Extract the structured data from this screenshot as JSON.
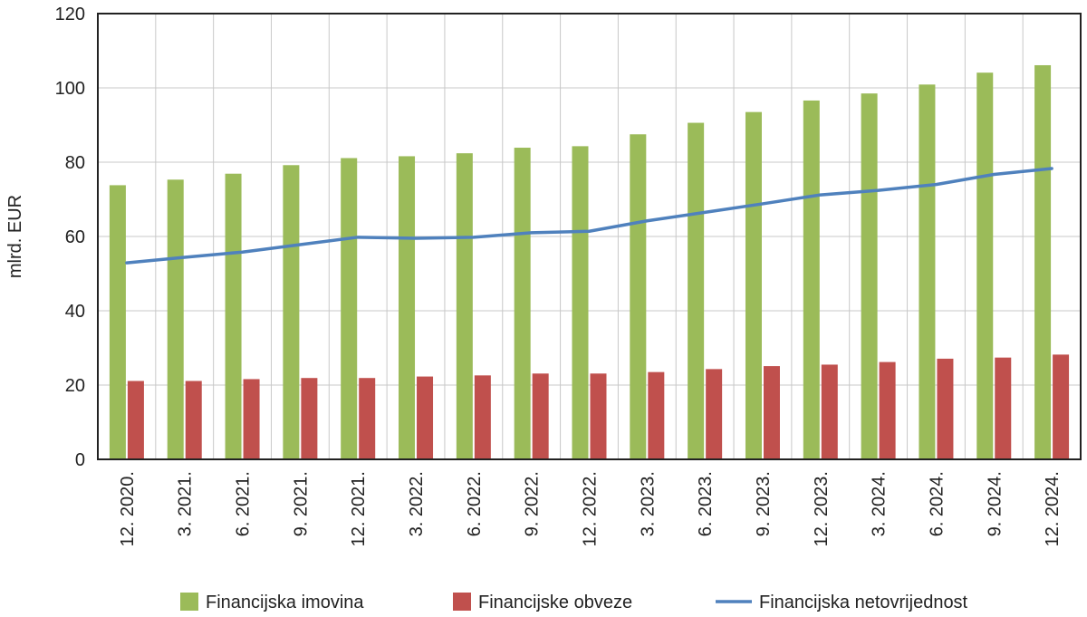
{
  "chart_data": {
    "type": "bar",
    "ylabel": "mlrd. EUR",
    "xlabel": "",
    "ylim": [
      0,
      120
    ],
    "yticks": [
      0,
      20,
      40,
      60,
      80,
      100,
      120
    ],
    "grid": true,
    "legend_position": "bottom",
    "categories": [
      "12. 2020.",
      "3. 2021.",
      "6. 2021.",
      "9. 2021.",
      "12. 2021.",
      "3. 2022.",
      "6. 2022.",
      "9. 2022.",
      "12. 2022.",
      "3. 2023.",
      "6. 2023.",
      "9. 2023.",
      "12. 2023.",
      "3. 2024.",
      "6. 2024.",
      "9. 2024.",
      "12. 2024."
    ],
    "series": [
      {
        "name": "Financijska imovina",
        "kind": "bar",
        "color": "#9BBB59",
        "values": [
          73.8,
          75.3,
          76.9,
          79.2,
          81.1,
          81.6,
          82.4,
          83.9,
          84.3,
          87.5,
          90.6,
          93.5,
          96.6,
          98.5,
          100.9,
          104.1,
          106.1
        ]
      },
      {
        "name": "Financijske obveze",
        "kind": "bar",
        "color": "#C0504D",
        "values": [
          21.1,
          21.1,
          21.6,
          21.9,
          21.9,
          22.3,
          22.6,
          23.1,
          23.1,
          23.5,
          24.3,
          25.1,
          25.5,
          26.2,
          27.1,
          27.4,
          28.2
        ]
      },
      {
        "name": "Financijska netovrijednost",
        "kind": "line",
        "color": "#4F81BD",
        "values": [
          52.9,
          54.4,
          55.8,
          57.8,
          59.8,
          59.5,
          59.8,
          61.0,
          61.4,
          64.2,
          66.5,
          68.8,
          71.2,
          72.4,
          74.0,
          76.7,
          78.3
        ]
      }
    ]
  }
}
